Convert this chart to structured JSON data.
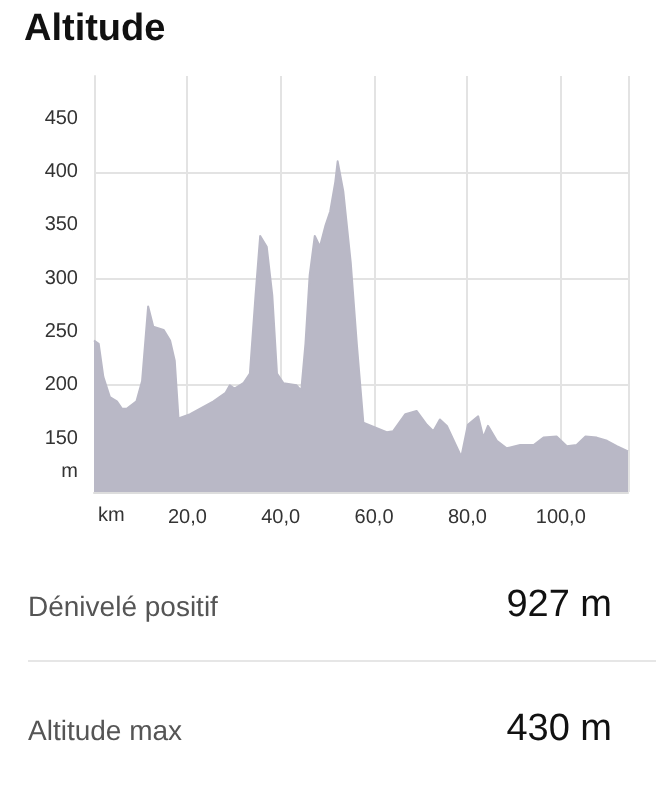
{
  "chart_data": {
    "type": "area",
    "title": "Altitude",
    "xlabel": "km",
    "ylabel": "m",
    "series": [
      {
        "color": "#b9b8c6",
        "x": [
          0,
          1,
          2,
          3.4,
          4.9,
          6,
          7,
          9.1,
          10.3,
          11.6,
          12.7,
          14.9,
          16.3,
          17.3,
          18.1,
          20.6,
          25.6,
          28.2,
          29.1,
          30.1,
          32,
          33.4,
          34.6,
          35.6,
          37,
          38.2,
          39.2,
          40.6,
          43.4,
          44.4,
          45.3,
          46.2,
          47.3,
          48.4,
          49.6,
          50.6,
          51.7,
          52.2,
          53.4,
          55,
          56.3,
          57.7,
          62.7,
          64.1,
          66.7,
          69.1,
          71.3,
          72.7,
          74.1,
          75.6,
          77.1,
          78.7,
          80.1,
          82.3,
          83.4,
          84.4,
          86.3,
          88.4,
          91.3,
          94.2,
          96.3,
          99.1,
          101.3,
          103.4,
          105.3,
          107.7,
          109.9,
          112,
          114.4
        ],
        "values": [
          242,
          239,
          208,
          189,
          185,
          178,
          178,
          185,
          204,
          274,
          255,
          252,
          242,
          223,
          169,
          173,
          185,
          193,
          200,
          197,
          202,
          211,
          284,
          340,
          330,
          284,
          211,
          202,
          200,
          195,
          239,
          303,
          340,
          330,
          350,
          363,
          391,
          410,
          382,
          315,
          239,
          165,
          156,
          157,
          173,
          176,
          163,
          157,
          168,
          162,
          148,
          133,
          163,
          171,
          151,
          162,
          148,
          141,
          144,
          144,
          151,
          152,
          143,
          144,
          152,
          151,
          148,
          143,
          138
        ]
      }
    ],
    "xlim": [
      0,
      114.4
    ],
    "ylim": [
      100,
      490
    ],
    "xticks": [
      {
        "value": 0,
        "label": null
      },
      {
        "value": 20,
        "label": "20,0"
      },
      {
        "value": 40,
        "label": "40,0"
      },
      {
        "value": 60,
        "label": "60,0"
      },
      {
        "value": 80,
        "label": "80,0"
      },
      {
        "value": 100,
        "label": "100,0"
      }
    ],
    "yticks": [
      150,
      200,
      250,
      300,
      350,
      400,
      450
    ],
    "grid": true,
    "annotations": [
      "Dénivelé positif",
      "927 m",
      "Altitude max",
      "430 m"
    ]
  }
}
